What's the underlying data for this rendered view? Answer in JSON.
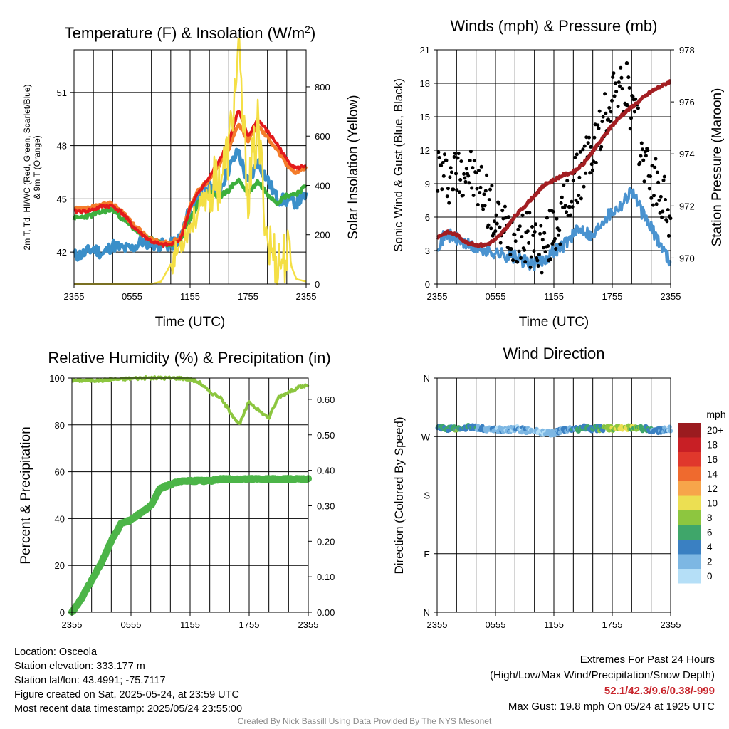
{
  "colors": {
    "t2m": "#e31a1c",
    "t9m": "#f47c2b",
    "td": "#3a8fc9",
    "hiwc": "#3daf3d",
    "insolation": "#f4df45",
    "gust": "#000000",
    "wind": "#4a93d0",
    "pressure": "#a31e22",
    "rh": "#8cc63f",
    "precip": "#4cb548"
  },
  "chart_data": [
    {
      "type": "line",
      "title": "Temperature (F) & Insolation (W/m²)",
      "xlabel": "Time (UTC)",
      "ylabel": "2m T, T_d, HI/WC (Red, Green, Scarlet/Blue) & 9m T (Orange)",
      "ylabel_lines": [
        "2m T, Td, HI/WC (Red, Green, Scarlet/Blue)",
        "& 9m T (Orange)"
      ],
      "y2label": "Solar Insolation (Yellow)",
      "xticks": [
        "2355",
        "0555",
        "1155",
        "1755",
        "2355"
      ],
      "yticks": [
        "42",
        "45",
        "48",
        "51"
      ],
      "y2ticks": [
        "0",
        "200",
        "400",
        "600",
        "800"
      ],
      "xlim": [
        0,
        24
      ],
      "ylim": [
        40.2,
        53.4
      ],
      "y2lim": [
        0,
        950
      ],
      "grid": true,
      "hours": [
        0,
        1,
        2,
        3,
        4,
        5,
        6,
        7,
        8,
        9,
        10,
        11,
        12,
        13,
        14,
        15,
        16,
        17,
        18,
        19,
        20,
        21,
        22,
        23,
        24
      ],
      "series": [
        {
          "key": "td",
          "width": 5,
          "axis": "left",
          "values": [
            41.8,
            41.9,
            42.2,
            41.9,
            42.4,
            42.2,
            42.2,
            42.6,
            42.5,
            42.4,
            42.4,
            42.8,
            44.5,
            45.2,
            45.6,
            45.5,
            46.7,
            47.7,
            45.8,
            47.1,
            46.1,
            45.0,
            44.9,
            44.8,
            45.2
          ]
        },
        {
          "key": "hiwc",
          "width": 5,
          "axis": "left",
          "values": [
            43.9,
            44.0,
            44.1,
            44.3,
            44.4,
            43.9,
            43.4,
            43.0,
            42.7,
            42.5,
            42.4,
            42.7,
            43.9,
            44.9,
            45.4,
            45.1,
            45.5,
            46.1,
            45.3,
            46.0,
            45.3,
            44.8,
            45.2,
            45.3,
            45.7
          ]
        },
        {
          "key": "t9m",
          "width": 5,
          "axis": "left",
          "values": [
            44.4,
            44.4,
            44.5,
            44.7,
            44.7,
            44.3,
            43.6,
            43.1,
            42.7,
            42.5,
            42.5,
            42.8,
            44.6,
            45.6,
            46.1,
            46.9,
            47.8,
            49.3,
            48.3,
            49.1,
            48.5,
            47.8,
            46.9,
            46.5,
            46.8
          ]
        },
        {
          "key": "t2m",
          "width": 4,
          "axis": "left",
          "values": [
            44.3,
            44.3,
            44.4,
            44.6,
            44.6,
            44.2,
            43.5,
            43.0,
            42.6,
            42.4,
            42.4,
            42.7,
            44.5,
            45.5,
            46.2,
            47.2,
            48.2,
            50.0,
            48.5,
            49.5,
            48.8,
            48.1,
            47.2,
            46.7,
            46.9
          ]
        },
        {
          "key": "insolation",
          "width": 2.5,
          "axis": "right",
          "values": [
            0,
            0,
            0,
            0,
            0,
            0,
            0,
            0,
            0,
            10,
            80,
            160,
            240,
            300,
            380,
            420,
            540,
            930,
            360,
            640,
            180,
            90,
            120,
            20,
            10
          ]
        }
      ]
    },
    {
      "type": "line",
      "title": "Winds (mph) & Pressure (mb)",
      "xlabel": "Time (UTC)",
      "ylabel": "Sonic Wind & Gust (Blue, Black)",
      "y2label": "Station Pressure (Maroon)",
      "xticks": [
        "2355",
        "0555",
        "1155",
        "1755",
        "2355"
      ],
      "yticks": [
        "0",
        "3",
        "6",
        "9",
        "12",
        "15",
        "18",
        "21"
      ],
      "y2ticks": [
        "970",
        "972",
        "974",
        "976",
        "978"
      ],
      "xlim": [
        0,
        24
      ],
      "ylim": [
        0,
        21
      ],
      "y2lim": [
        969,
        978
      ],
      "grid": true,
      "hours": [
        0,
        1,
        2,
        3,
        4,
        5,
        6,
        7,
        8,
        9,
        10,
        11,
        12,
        13,
        14,
        15,
        16,
        17,
        18,
        19,
        20,
        21,
        22,
        23,
        24
      ],
      "wind": [
        3.5,
        4.5,
        4.0,
        3.5,
        3.2,
        3.0,
        2.8,
        2.6,
        2.4,
        2.0,
        1.8,
        2.2,
        3.0,
        3.5,
        4.5,
        5.0,
        4.2,
        5.8,
        6.5,
        7.2,
        8.5,
        6.5,
        5.0,
        3.5,
        2.0
      ],
      "gust": [
        10.5,
        9.5,
        10.0,
        10.5,
        9.0,
        8.0,
        5.5,
        5.0,
        4.5,
        4.2,
        3.8,
        3.2,
        5.0,
        6.5,
        8.5,
        10.5,
        12.0,
        14.0,
        17.5,
        17.0,
        16.0,
        12.0,
        9.5,
        8.0,
        6.0
      ],
      "pressure": [
        970.8,
        971.0,
        970.9,
        970.6,
        970.5,
        970.5,
        970.7,
        971.1,
        971.6,
        972.0,
        972.4,
        972.8,
        973.0,
        973.2,
        973.3,
        973.6,
        974.1,
        974.6,
        975.1,
        975.5,
        975.8,
        976.1,
        976.4,
        976.6,
        976.8
      ],
      "gust_max": {
        "value": 19.8,
        "hour": 19.5
      }
    },
    {
      "type": "line",
      "title": "Relative Humidity (%) & Precipitation (in)",
      "ylabel": "Percent & Precipitation",
      "xticks": [
        "2355",
        "0555",
        "1155",
        "1755",
        "2355"
      ],
      "yticks": [
        "0",
        "20",
        "40",
        "60",
        "80",
        "100"
      ],
      "y2ticks": [
        "0.00",
        "0.10",
        "0.20",
        "0.30",
        "0.40",
        "0.50",
        "0.60"
      ],
      "xlim": [
        0,
        24
      ],
      "ylim": [
        0,
        100
      ],
      "y2lim": [
        0,
        0.66
      ],
      "grid": true,
      "hours": [
        0,
        1,
        2,
        3,
        4,
        5,
        6,
        7,
        8,
        9,
        10,
        11,
        12,
        13,
        14,
        15,
        16,
        17,
        18,
        19,
        20,
        21,
        22,
        23,
        24
      ],
      "rh": [
        99,
        99,
        99,
        99,
        99.5,
        99.5,
        99.8,
        100,
        100,
        100,
        100,
        100,
        99.5,
        98,
        94,
        92,
        86,
        80,
        90,
        86,
        83,
        92,
        94,
        96,
        97
      ],
      "precip": [
        0.0,
        0.04,
        0.09,
        0.14,
        0.2,
        0.25,
        0.26,
        0.28,
        0.3,
        0.35,
        0.36,
        0.37,
        0.37,
        0.37,
        0.37,
        0.375,
        0.375,
        0.375,
        0.375,
        0.375,
        0.375,
        0.375,
        0.375,
        0.375,
        0.375
      ]
    },
    {
      "type": "scatter",
      "title": "Wind Direction",
      "ylabel": "Direction (Colored By Speed)",
      "xticks": [
        "2355",
        "0555",
        "1155",
        "1755",
        "2355"
      ],
      "yticks": [
        "N",
        "E",
        "S",
        "W",
        "N"
      ],
      "xlim": [
        0,
        24
      ],
      "ylim": [
        0,
        360
      ],
      "grid": true,
      "hours": [
        0,
        1,
        2,
        3,
        4,
        5,
        6,
        7,
        8,
        9,
        10,
        11,
        12,
        13,
        14,
        15,
        16,
        17,
        18,
        19,
        20,
        21,
        22,
        23,
        24
      ],
      "direction": [
        284,
        283,
        282,
        284,
        283,
        282,
        281,
        280,
        282,
        280,
        279,
        276,
        275,
        279,
        281,
        283,
        282,
        283,
        282,
        283,
        284,
        283,
        281,
        279,
        282
      ],
      "speed": [
        4,
        5,
        6,
        5,
        4,
        3,
        2,
        2,
        2,
        2,
        1,
        1,
        2,
        3,
        4,
        5,
        5,
        6,
        8,
        9,
        8,
        6,
        4,
        3,
        2
      ],
      "legend": {
        "unit": "mph",
        "labels": [
          "20+",
          "18",
          "16",
          "14",
          "12",
          "10",
          "8",
          "6",
          "4",
          "2",
          "0"
        ],
        "colors": [
          "#9b1b1f",
          "#c81f25",
          "#e0382c",
          "#ef6a2e",
          "#f7a54a",
          "#ecdf52",
          "#8dc63f",
          "#3fa66a",
          "#3a80c2",
          "#7db7e3",
          "#b5dff7"
        ]
      }
    }
  ],
  "station": {
    "location": "Location: Osceola",
    "elevation": "Station elevation: 333.177 m",
    "latlon": "Station lat/lon: 43.4991; -75.7117",
    "created": "Figure created on Sat, 2025-05-24, at 23:59 UTC",
    "recent": "Most recent data timestamp: 2025/05/24 23:55:00"
  },
  "extremes": {
    "title": "Extremes For Past 24 Hours",
    "subtitle": "(High/Low/Max Wind/Precipitation/Snow Depth)",
    "values": "52.1/42.3/9.6/0.38/-999",
    "max_gust": "Max Gust: 19.8 mph On 05/24 at 1925 UTC"
  },
  "credit": "Created By Nick Bassill Using Data Provided By The NYS Mesonet"
}
